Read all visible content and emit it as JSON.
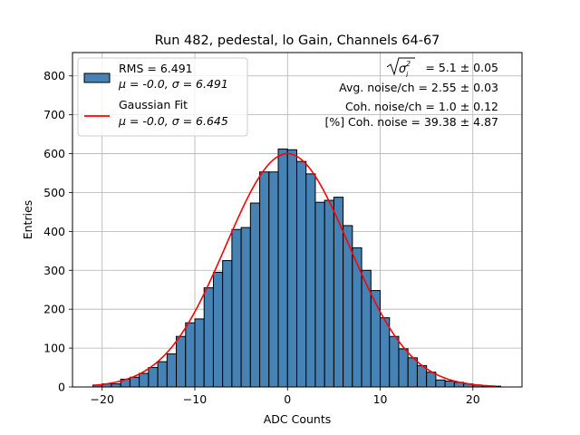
{
  "chart_data": {
    "type": "bar",
    "title": "Run 482, pedestal, lo Gain, Channels 64-67",
    "xlabel": "ADC Counts",
    "ylabel": "Entries",
    "xlim": [
      -23.2,
      25.3
    ],
    "ylim": [
      0,
      860
    ],
    "xticks": [
      -20,
      -10,
      0,
      10,
      20
    ],
    "xtick_labels": [
      "−20",
      "−10",
      "0",
      "10",
      "20"
    ],
    "yticks": [
      0,
      100,
      200,
      300,
      400,
      500,
      600,
      700,
      800
    ],
    "grid": true,
    "legend_position": "top-left",
    "series": [
      {
        "name": "RMS = 6.491",
        "subtitle": "μ = -0.0, σ = 6.491",
        "kind": "histogram",
        "color": "#4682b4",
        "edge_color": "#000000",
        "bins": [
          [
            -21,
            -20,
            5
          ],
          [
            -20,
            -19,
            8
          ],
          [
            -19,
            -18,
            8
          ],
          [
            -18,
            -17,
            20
          ],
          [
            -17,
            -16,
            25
          ],
          [
            -16,
            -15,
            35
          ],
          [
            -15,
            -14,
            50
          ],
          [
            -14,
            -13,
            65
          ],
          [
            -13,
            -12,
            85
          ],
          [
            -12,
            -11,
            130
          ],
          [
            -11,
            -10,
            165
          ],
          [
            -10,
            -9,
            175
          ],
          [
            -9,
            -8,
            255
          ],
          [
            -8,
            -7,
            295
          ],
          [
            -7,
            -6,
            325
          ],
          [
            -6,
            -5,
            405
          ],
          [
            -5,
            -4,
            410
          ],
          [
            -4,
            -3,
            473
          ],
          [
            -3,
            -2,
            553
          ],
          [
            -2,
            -1,
            553
          ],
          [
            -1,
            0,
            612
          ],
          [
            0,
            1,
            610
          ],
          [
            1,
            2,
            580
          ],
          [
            2,
            3,
            548
          ],
          [
            3,
            4,
            475
          ],
          [
            4,
            5,
            480
          ],
          [
            5,
            6,
            488
          ],
          [
            6,
            7,
            415
          ],
          [
            7,
            8,
            358
          ],
          [
            8,
            9,
            300
          ],
          [
            9,
            10,
            248
          ],
          [
            10,
            11,
            178
          ],
          [
            11,
            12,
            130
          ],
          [
            12,
            13,
            98
          ],
          [
            13,
            14,
            75
          ],
          [
            14,
            15,
            55
          ],
          [
            15,
            16,
            38
          ],
          [
            16,
            17,
            18
          ],
          [
            17,
            18,
            15
          ],
          [
            18,
            19,
            12
          ],
          [
            19,
            20,
            8
          ],
          [
            20,
            21,
            5
          ],
          [
            21,
            22,
            2
          ],
          [
            22,
            23,
            2
          ]
        ]
      },
      {
        "name": "Gaussian Fit",
        "subtitle": "μ = -0.0, σ = 6.645",
        "kind": "gaussian",
        "color": "#ff0000",
        "mu": 0.0,
        "sigma": 6.645,
        "amplitude": 600,
        "x_range": [
          -21,
          22.5
        ]
      }
    ],
    "annotations": [
      "= 5.1 ± 0.05",
      "Avg. noise/ch = 2.55 ± 0.03",
      "Coh. noise/ch = 1.0 ± 0.12",
      "[%] Coh. noise = 39.38 ± 4.87"
    ]
  }
}
